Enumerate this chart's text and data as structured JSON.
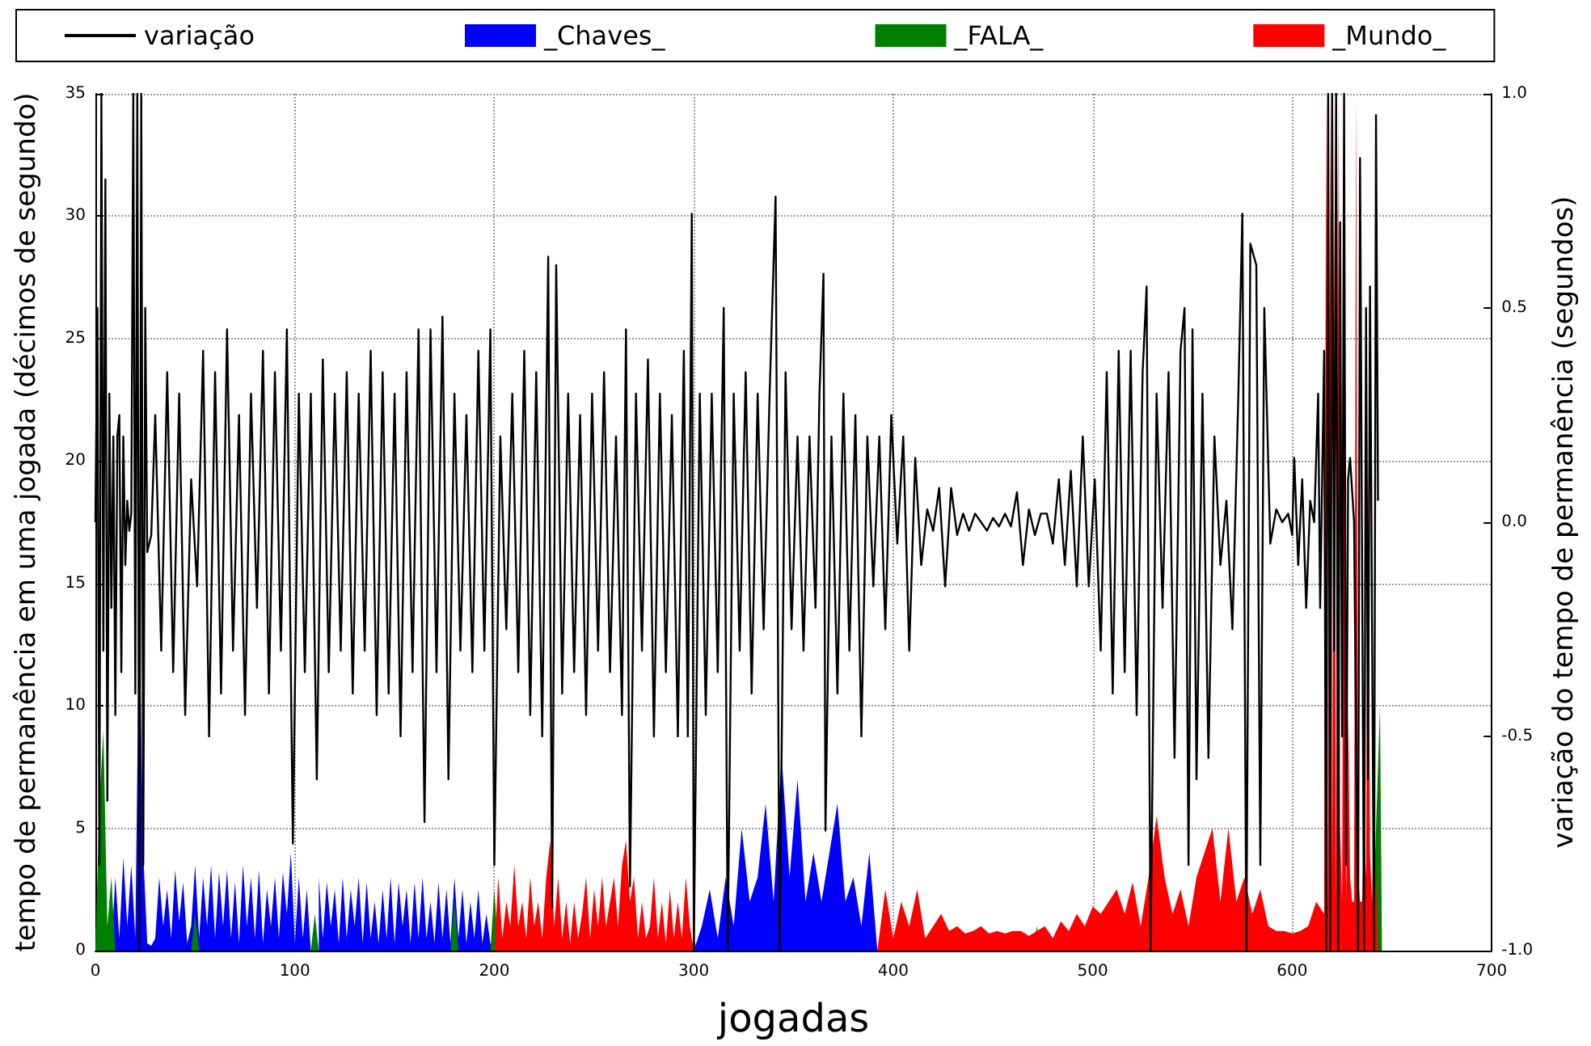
{
  "chart_data": {
    "type": "line",
    "xlabel": "jogadas",
    "ylabel": "tempo de permanência em uma jogada (décimos de segundo)",
    "y2label": "variação do tempo de permanência (segundos)",
    "xlim": [
      0,
      700
    ],
    "xticks": [
      0,
      100,
      200,
      300,
      400,
      500,
      600,
      700
    ],
    "ylim": [
      0,
      35
    ],
    "yticks": [
      0,
      5,
      10,
      15,
      20,
      25,
      30,
      35
    ],
    "y2lim": [
      -1,
      1
    ],
    "y2ticks": [
      {
        "value": -1,
        "label": "-1.0"
      },
      {
        "value": -0.5,
        "label": "-0.5"
      },
      {
        "value": 0,
        "label": "0.0"
      },
      0.5,
      {
        "value": 1,
        "label": "1.0"
      }
    ],
    "grid": true,
    "legend": "top",
    "marker": "none",
    "series": [
      {
        "name": "variação",
        "type": "line",
        "axis": "y2",
        "color": "#000000",
        "x": [
          0,
          1,
          2,
          3,
          4,
          5,
          6,
          7,
          8,
          9,
          10,
          11,
          12,
          13,
          14,
          15,
          16,
          17,
          18,
          19,
          20,
          21,
          22,
          23,
          24,
          25,
          26,
          27,
          28,
          30,
          33,
          36,
          39,
          42,
          45,
          48,
          51,
          54,
          57,
          60,
          63,
          66,
          69,
          72,
          75,
          78,
          81,
          84,
          87,
          90,
          93,
          96,
          99,
          102,
          105,
          108,
          111,
          114,
          117,
          120,
          123,
          126,
          129,
          132,
          135,
          138,
          141,
          144,
          147,
          150,
          153,
          156,
          159,
          162,
          165,
          168,
          171,
          174,
          177,
          180,
          183,
          186,
          189,
          192,
          195,
          198,
          200,
          203,
          206,
          209,
          212,
          215,
          218,
          221,
          224,
          227,
          229,
          231,
          234,
          237,
          240,
          243,
          246,
          249,
          252,
          255,
          258,
          261,
          264,
          266,
          268,
          271,
          274,
          277,
          280,
          283,
          286,
          289,
          292,
          295,
          297,
          299,
          300,
          303,
          306,
          309,
          312,
          315,
          317,
          320,
          323,
          326,
          329,
          332,
          335,
          338,
          341,
          343,
          346,
          349,
          352,
          355,
          358,
          361,
          363,
          365,
          366,
          369,
          372,
          375,
          378,
          381,
          384,
          387,
          390,
          393,
          396,
          399,
          402,
          405,
          408,
          411,
          414,
          417,
          420,
          423,
          426,
          429,
          432,
          435,
          438,
          441,
          444,
          447,
          450,
          453,
          456,
          459,
          462,
          465,
          468,
          471,
          474,
          477,
          480,
          483,
          486,
          489,
          492,
          495,
          498,
          501,
          504,
          507,
          510,
          513,
          516,
          519,
          522,
          525,
          527,
          529,
          532,
          535,
          538,
          541,
          544,
          546,
          548,
          550,
          552,
          555,
          558,
          561,
          564,
          567,
          570,
          573,
          575,
          577,
          579,
          582,
          584,
          586,
          589,
          592,
          595,
          598,
          600,
          601,
          603,
          605,
          607,
          609,
          611,
          613,
          614,
          616,
          617,
          618,
          619,
          620,
          621,
          622,
          623,
          624,
          625,
          626,
          627,
          628,
          629,
          631,
          633,
          634,
          636,
          637,
          638,
          639,
          641,
          642,
          643
        ],
        "values": [
          0,
          0.5,
          -0.8,
          1,
          -0.3,
          0.8,
          -0.65,
          0.3,
          -0.2,
          0.2,
          -0.45,
          0.2,
          0.25,
          -0.35,
          0.2,
          -0.1,
          0.05,
          -0.02,
          0.02,
          1,
          -0.4,
          1,
          -1,
          1,
          -0.8,
          0.5,
          -0.07,
          -0.05,
          -0.03,
          0.25,
          -0.3,
          0.35,
          -0.35,
          0.3,
          -0.45,
          0.1,
          -0.15,
          0.4,
          -0.5,
          0.35,
          -0.4,
          0.45,
          -0.3,
          0.25,
          -0.45,
          0.3,
          -0.2,
          0.4,
          -0.4,
          0.35,
          -0.3,
          0.45,
          -0.75,
          0.3,
          -0.35,
          0.3,
          -0.6,
          0.38,
          -0.35,
          0.3,
          -0.3,
          0.35,
          -0.4,
          0.3,
          -0.3,
          0.4,
          -0.45,
          0.35,
          -0.4,
          0.3,
          -0.5,
          0.35,
          -0.35,
          0.45,
          -0.7,
          0.45,
          -0.35,
          0.48,
          -0.6,
          0.3,
          -0.3,
          0.25,
          -0.35,
          0.4,
          -0.3,
          0.45,
          -0.8,
          0.2,
          -0.25,
          0.3,
          -0.35,
          0.4,
          -0.45,
          0.35,
          -0.5,
          0.62,
          -0.9,
          0.6,
          -0.4,
          0.3,
          -0.35,
          0.25,
          -0.45,
          0.3,
          -0.3,
          0.35,
          -0.35,
          0.2,
          -0.45,
          0.45,
          -0.85,
          0.3,
          -0.3,
          0.38,
          -0.5,
          0.3,
          -0.35,
          0.25,
          -0.5,
          0.4,
          -0.5,
          0.72,
          -1,
          0.3,
          -0.45,
          0.3,
          -0.35,
          0.5,
          -1,
          0.3,
          -0.3,
          0.35,
          -0.4,
          0.3,
          -0.25,
          0.3,
          0.76,
          -1,
          0.35,
          -0.25,
          0.2,
          -0.3,
          0.2,
          -0.2,
          0.3,
          0.58,
          -0.72,
          0.2,
          -0.4,
          0.3,
          -0.3,
          0.25,
          -0.5,
          0.2,
          -0.15,
          0.2,
          -0.25,
          0.25,
          -0.05,
          0.2,
          -0.3,
          0.15,
          -0.1,
          0.03,
          -0.02,
          0.08,
          -0.15,
          0.08,
          -0.03,
          0.02,
          -0.02,
          0.02,
          0,
          -0.02,
          0.01,
          -0.01,
          0.02,
          -0.01,
          0.07,
          -0.1,
          0.03,
          -0.03,
          0.02,
          0.02,
          -0.05,
          0.1,
          -0.1,
          0.12,
          -0.15,
          0.2,
          -0.15,
          0.1,
          -0.3,
          0.35,
          -0.4,
          0.4,
          -0.35,
          0.4,
          -0.45,
          0.35,
          0.55,
          -1,
          0.3,
          -0.2,
          0.35,
          -0.55,
          0.4,
          0.5,
          -0.8,
          0.45,
          -0.6,
          0.3,
          -0.55,
          0.2,
          -0.1,
          0.05,
          -0.25,
          0.3,
          0.72,
          -1,
          0.65,
          0.6,
          -0.8,
          0.5,
          -0.05,
          0.03,
          0,
          0.02,
          -0.03,
          0.15,
          -0.1,
          0.1,
          -0.2,
          0.05,
          0,
          0.3,
          -0.2,
          0.4,
          -1,
          1,
          -1,
          1,
          -0.3,
          1,
          -1,
          0.7,
          -0.5,
          1,
          -0.8,
          0.1,
          0.15,
          0,
          -1,
          0.85,
          -1,
          0.5,
          -0.6,
          0.55,
          -1,
          0.95,
          0.05
        ]
      },
      {
        "name": "_Chaves_",
        "type": "area",
        "color": "#0000ff",
        "x": [
          8,
          10,
          12,
          14,
          16,
          18,
          20,
          22,
          24,
          26,
          28,
          30,
          32,
          34,
          36,
          38,
          40,
          42,
          44,
          46,
          48,
          50,
          52,
          54,
          56,
          58,
          60,
          62,
          64,
          66,
          68,
          70,
          72,
          74,
          76,
          78,
          80,
          82,
          84,
          86,
          88,
          90,
          92,
          94,
          96,
          98,
          100,
          102,
          104,
          106,
          108,
          110,
          112,
          114,
          116,
          118,
          120,
          122,
          124,
          126,
          128,
          130,
          132,
          134,
          136,
          138,
          140,
          142,
          144,
          146,
          148,
          150,
          152,
          154,
          156,
          158,
          160,
          162,
          164,
          166,
          168,
          170,
          172,
          174,
          176,
          178,
          180,
          182,
          184,
          186,
          188,
          190,
          192,
          194,
          196,
          198,
          200,
          300,
          304,
          308,
          312,
          316,
          320,
          324,
          328,
          332,
          336,
          340,
          344,
          348,
          352,
          356,
          360,
          364,
          368,
          372,
          376,
          380,
          384,
          388,
          392
        ],
        "values": [
          0,
          3,
          0.5,
          3.8,
          1,
          3.5,
          0.5,
          14,
          4,
          0.3,
          0.2,
          0.5,
          3,
          1,
          2.5,
          0.5,
          3.3,
          1.2,
          2.8,
          0.3,
          1,
          3.5,
          0.5,
          3,
          1,
          3.5,
          0.5,
          3.2,
          1,
          3.3,
          0.5,
          2.8,
          0.3,
          3.5,
          1,
          3,
          0.5,
          3.3,
          0.3,
          2.5,
          1,
          3,
          0.5,
          3.2,
          1.5,
          4,
          0.3,
          3,
          0.5,
          2.5,
          0,
          null,
          3,
          0.5,
          2.8,
          1,
          2.5,
          0.3,
          3,
          0.5,
          2.5,
          1,
          3,
          0.3,
          2.8,
          0.5,
          2,
          0.3,
          2.5,
          0.5,
          3,
          0.3,
          2.8,
          1,
          2.5,
          0.3,
          2.8,
          0.5,
          3,
          0.5,
          2,
          0.3,
          2.8,
          0.5,
          2.5,
          0.3,
          3,
          0.5,
          2.5,
          0.3,
          2,
          0.5,
          2.5,
          0.3,
          1.5,
          0.3,
          0,
          0,
          1,
          2.5,
          0.5,
          3,
          1,
          5,
          2,
          3,
          6,
          2,
          8,
          3,
          7,
          2,
          4,
          2,
          4,
          6,
          2,
          3,
          1,
          4,
          0
        ]
      },
      {
        "name": "_FALA_",
        "type": "area",
        "color": "#008000",
        "x": [
          0,
          2,
          4,
          6,
          8,
          10,
          48,
          50,
          52,
          108,
          110,
          112,
          178,
          180,
          182,
          198,
          200,
          202,
          470,
          472,
          474,
          640,
          642,
          644,
          645
        ],
        "values": [
          0,
          6,
          9,
          1,
          3,
          0,
          0,
          1.5,
          0,
          0,
          1.5,
          0,
          0,
          2,
          0,
          0,
          2.5,
          0,
          0,
          1,
          0,
          0,
          5,
          10,
          0
        ]
      },
      {
        "name": "_Mundo_",
        "type": "area",
        "color": "#ff0000",
        "x": [
          200,
          202,
          204,
          206,
          208,
          210,
          212,
          214,
          216,
          218,
          220,
          222,
          224,
          226,
          228,
          230,
          232,
          234,
          236,
          238,
          240,
          242,
          244,
          246,
          248,
          250,
          252,
          254,
          256,
          258,
          260,
          262,
          264,
          266,
          268,
          270,
          272,
          274,
          276,
          278,
          280,
          282,
          284,
          286,
          288,
          290,
          292,
          294,
          296,
          298,
          300,
          392,
          396,
          400,
          404,
          408,
          412,
          416,
          420,
          424,
          428,
          432,
          436,
          440,
          444,
          448,
          452,
          456,
          460,
          464,
          468,
          472,
          476,
          480,
          484,
          488,
          492,
          496,
          500,
          504,
          508,
          512,
          516,
          520,
          524,
          528,
          532,
          536,
          540,
          544,
          548,
          552,
          556,
          560,
          564,
          568,
          572,
          576,
          580,
          584,
          588,
          592,
          596,
          600,
          604,
          608,
          612,
          616,
          617,
          618,
          619,
          620,
          621,
          622,
          623,
          624,
          625,
          626,
          627,
          628,
          629,
          630,
          631,
          632,
          633,
          634,
          635,
          636,
          637,
          638,
          639,
          640,
          641,
          642,
          643
        ],
        "values": [
          0,
          3,
          0.5,
          2,
          1,
          3.5,
          1,
          2,
          0.5,
          3,
          1,
          2,
          0.5,
          3,
          4.5,
          1,
          3,
          0.5,
          2,
          0.3,
          2,
          0.5,
          1.5,
          3,
          0.5,
          2.5,
          1,
          3,
          1,
          2,
          3,
          1,
          3.5,
          4.5,
          2,
          3,
          0.5,
          2,
          0.5,
          1,
          3,
          0.5,
          2,
          0.3,
          2.5,
          0.5,
          2,
          0.5,
          3,
          1,
          0,
          0,
          2.5,
          0.5,
          2,
          1,
          2.5,
          0.5,
          1,
          1.5,
          0.8,
          1,
          0.7,
          0.8,
          1,
          0.7,
          0.8,
          0.7,
          0.8,
          0.8,
          0.6,
          0.8,
          1,
          0.5,
          1.2,
          0.8,
          1.5,
          1,
          1.8,
          1.5,
          2,
          2.5,
          1.5,
          2.8,
          1,
          3,
          5.5,
          3,
          1.5,
          2.5,
          1,
          3,
          4,
          5,
          2,
          5,
          2,
          3,
          1.5,
          2.5,
          1,
          0.8,
          0.8,
          0.7,
          0.8,
          1,
          2,
          1.5,
          35,
          2,
          35,
          3,
          30,
          2,
          35,
          5,
          2,
          30,
          2,
          10,
          3,
          2,
          2,
          35,
          3,
          2,
          2,
          5,
          3,
          20,
          4,
          2,
          6,
          3,
          0
        ]
      }
    ]
  }
}
